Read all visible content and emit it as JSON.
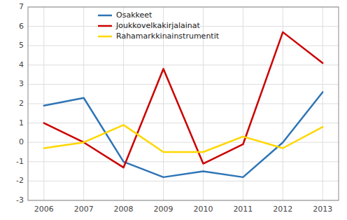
{
  "chart_data": {
    "type": "line",
    "x": [
      2006,
      2007,
      2008,
      2009,
      2010,
      2011,
      2012,
      2013
    ],
    "series": [
      {
        "name": "Osakkeet",
        "color": "#2E75B6",
        "values": [
          1.9,
          2.3,
          -1.0,
          -1.8,
          -1.5,
          -1.8,
          0.0,
          2.6
        ]
      },
      {
        "name": "Joukkovelkakirjalainat",
        "color": "#CC0000",
        "values": [
          1.0,
          0.0,
          -1.3,
          3.8,
          -1.1,
          -0.1,
          5.7,
          4.1
        ]
      },
      {
        "name": "Rahamarkkinainstrumentit",
        "color": "#FFD700",
        "values": [
          -0.3,
          0.0,
          0.9,
          -0.5,
          -0.5,
          0.3,
          -0.3,
          0.8
        ]
      }
    ],
    "xlim": [
      2005.6,
      2013.4
    ],
    "xticks": [
      2006,
      2007,
      2008,
      2009,
      2010,
      2011,
      2012,
      2013
    ],
    "ylim": [
      -3,
      7
    ],
    "yticks": [
      -3,
      -2,
      -1,
      0,
      1,
      2,
      3,
      4,
      5,
      6,
      7
    ],
    "grid": true,
    "legend": "top"
  }
}
